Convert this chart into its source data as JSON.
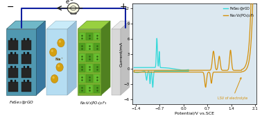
{
  "xlabel": "Potential/V vs.SCE",
  "ylabel": "Current/mA",
  "xlim": [
    -1.5,
    2.15
  ],
  "ylim": [
    -7,
    13
  ],
  "yticks": [
    -6,
    -3,
    0,
    3,
    6,
    9,
    12
  ],
  "xticks": [
    -1.4,
    -0.7,
    0.0,
    0.7,
    1.4,
    2.1
  ],
  "cyan_color": "#30D8D8",
  "orange_color": "#D4900A",
  "plot_bg": "#DCE8F0",
  "legend_cyan": "FeSe$_2$@rGO",
  "legend_orange": "Na$_3$V$_2$(PO$_4$)$_2$F$_3$",
  "annotation": "LSV of electrolyte",
  "left_bg": "#C8E8F4",
  "anode_face": "#4090A0",
  "cathode_face": "#70B840",
  "electrolyte_face": "#90C8E0",
  "dark_electrode": "#303030",
  "wire_color": "#1020A0",
  "label_fese": "FeSe$_2$@rGO",
  "label_na": "Na$_3$V$_2$(PO$_4$)$_2$F$_3$"
}
